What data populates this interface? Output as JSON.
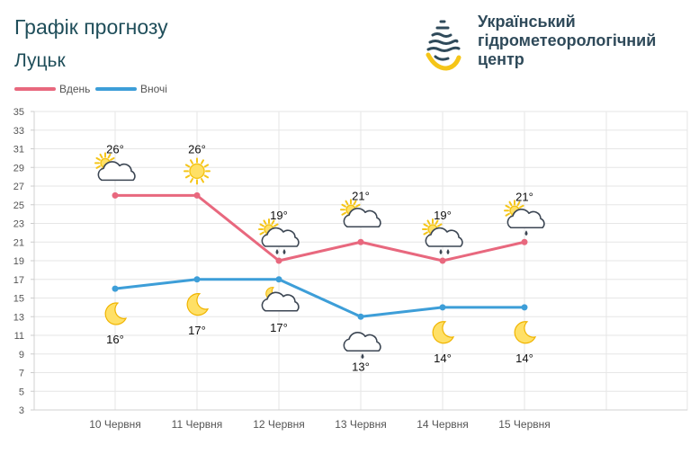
{
  "header": {
    "title": "Графік прогнозу",
    "city": "Луцьк"
  },
  "organization": {
    "name_line1": "Український",
    "name_line2": "гідрометеорологічний",
    "name_line3": "центр"
  },
  "chart_data": {
    "type": "line",
    "categories": [
      "10 Червня",
      "11 Червня",
      "12 Червня",
      "13 Червня",
      "14 Червня",
      "15 Червня"
    ],
    "series": [
      {
        "name": "Вдень",
        "color": "#e8687e",
        "values": [
          26,
          26,
          19,
          21,
          19,
          21
        ],
        "labels": [
          "26°",
          "26°",
          "19°",
          "21°",
          "19°",
          "21°"
        ],
        "icons": [
          "partly-cloudy-icon",
          "sun-icon",
          "cloud-sun-rain-icon",
          "partly-cloudy-icon",
          "cloud-sun-rain-icon",
          "cloud-sun-drop-icon"
        ]
      },
      {
        "name": "Вночі",
        "color": "#3d9ed8",
        "values": [
          16,
          17,
          17,
          13,
          14,
          14
        ],
        "labels": [
          "16°",
          "17°",
          "17°",
          "13°",
          "14°",
          "14°"
        ],
        "icons": [
          "moon-icon",
          "moon-icon",
          "cloud-moon-icon",
          "cloud-drop-icon",
          "moon-icon",
          "moon-icon"
        ]
      }
    ],
    "ylim": [
      3,
      35
    ],
    "yticks": [
      3,
      5,
      7,
      9,
      11,
      13,
      15,
      17,
      19,
      21,
      23,
      25,
      27,
      29,
      31,
      33,
      35
    ],
    "grid": true,
    "legend": "top-left"
  }
}
